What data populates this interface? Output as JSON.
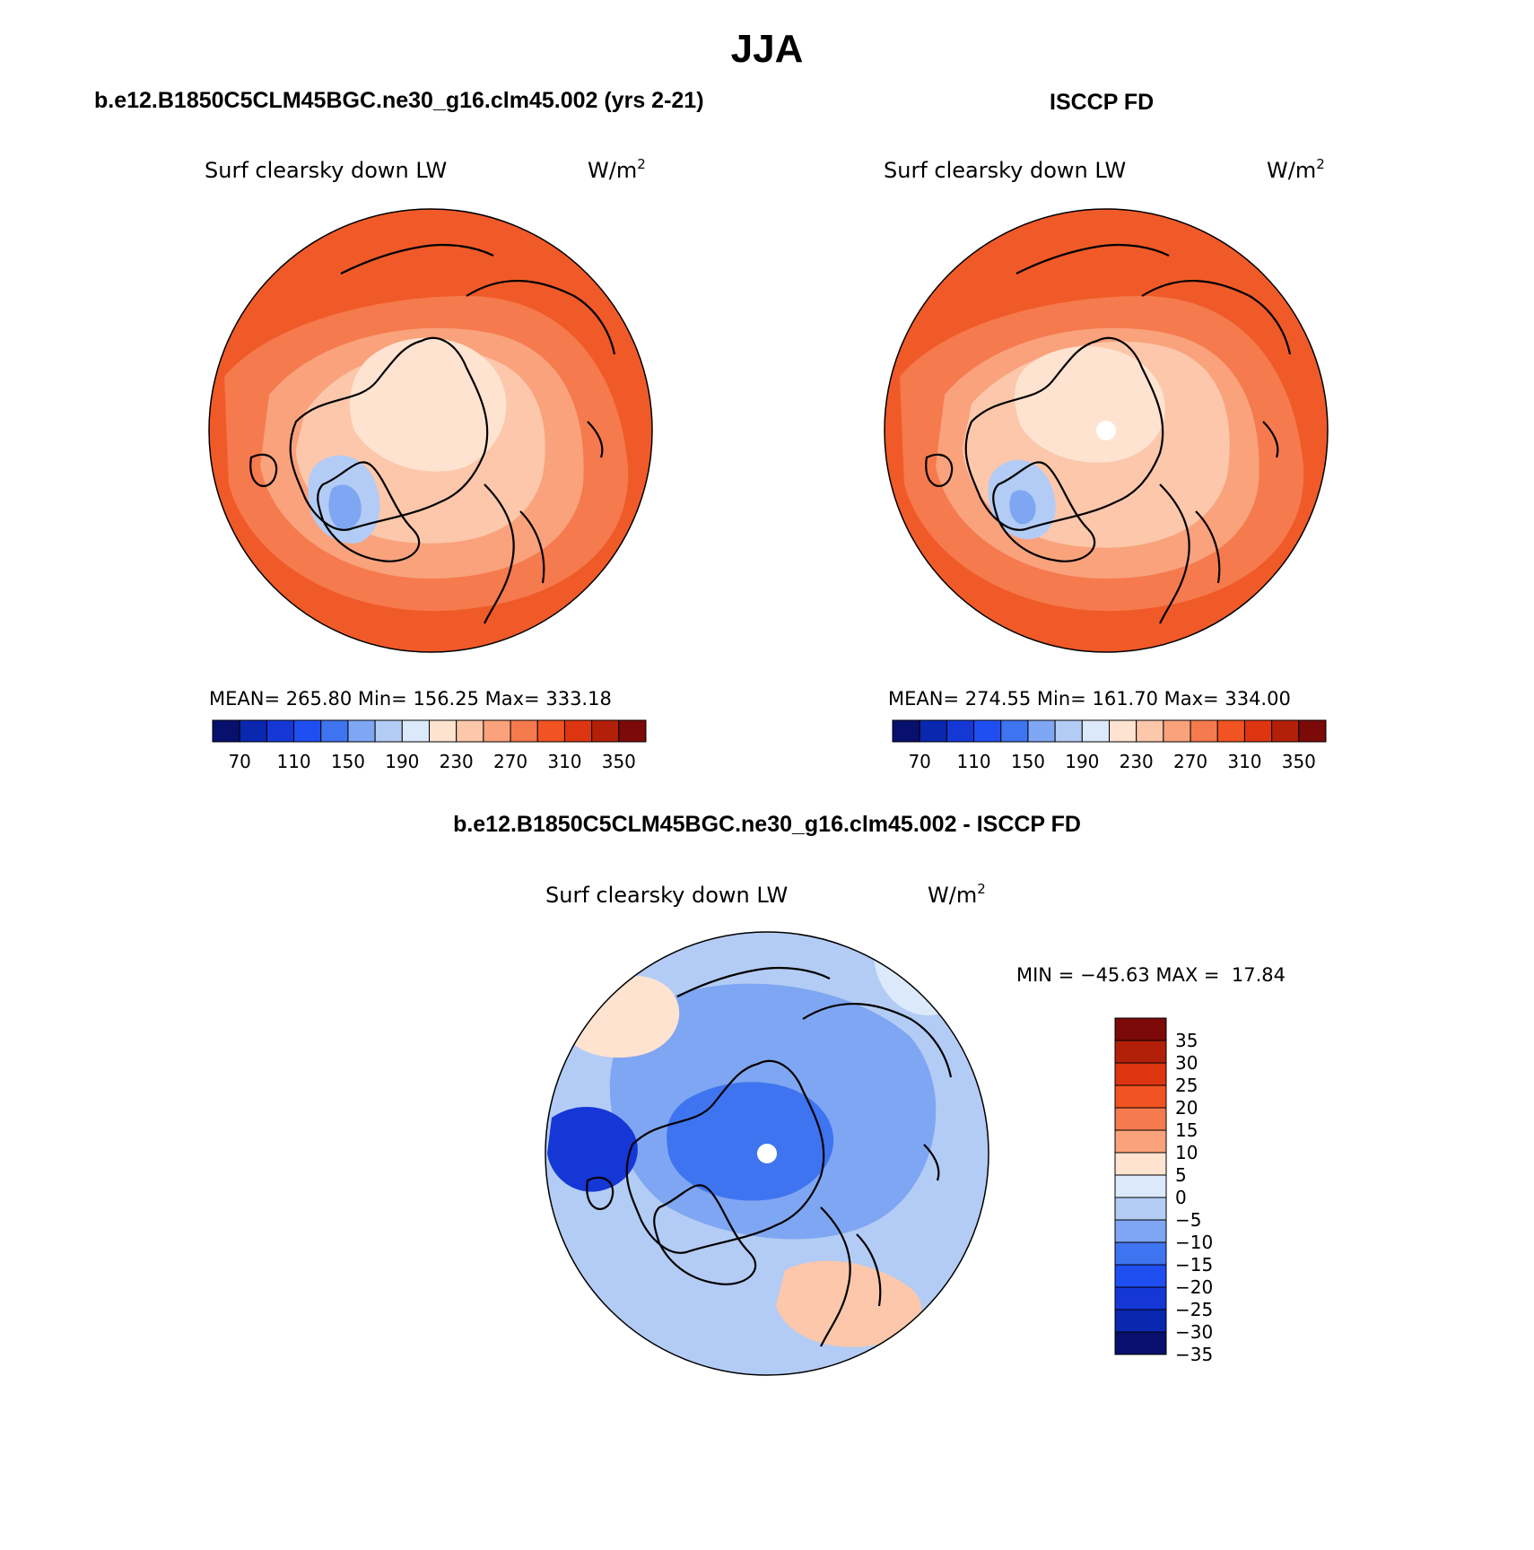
{
  "figure": {
    "season": "JJA"
  },
  "panels": [
    {
      "id": "model",
      "title": "b.e12.B1850C5CLM45BGC.ne30_g16.clm45.002 (yrs 2-21)",
      "variable": "Surf clearsky down LW",
      "units": "W/m",
      "units_sup": "2",
      "stats": {
        "mean_label": "MEAN=",
        "mean": "265.80",
        "min_label": "Min=",
        "min": "156.25",
        "max_label": "Max=",
        "max": "333.18"
      }
    },
    {
      "id": "obs",
      "title": "ISCCP FD",
      "variable": "Surf clearsky down LW",
      "units": "W/m",
      "units_sup": "2",
      "stats": {
        "mean_label": "MEAN=",
        "mean": "274.55",
        "min_label": "Min=",
        "min": "161.70",
        "max_label": "Max=",
        "max": "334.00"
      }
    },
    {
      "id": "diff",
      "title": "b.e12.B1850C5CLM45BGC.ne30_g16.clm45.002 - ISCCP FD",
      "variable": "Surf clearsky down LW",
      "units": "W/m",
      "units_sup": "2",
      "stats_text": "MIN = −45.63 MAX =  17.84"
    }
  ],
  "colorbars": {
    "abs": {
      "colors": [
        "#08106e",
        "#0a27b0",
        "#1437d6",
        "#1f4ff0",
        "#3f74f0",
        "#7fa6f2",
        "#b3ccf5",
        "#dbe9fa",
        "#fde3d0",
        "#fcc7aa",
        "#f9a27c",
        "#f57a4d",
        "#f15422",
        "#dd3510",
        "#b2200a",
        "#7c0a08"
      ],
      "tick_labels": [
        "70",
        "110",
        "150",
        "190",
        "230",
        "270",
        "310",
        "350"
      ]
    },
    "diff": {
      "colors": [
        "#7c0a08",
        "#b2200a",
        "#dd3510",
        "#f15422",
        "#f57a4d",
        "#f9a27c",
        "#fde3d0",
        "#dbe9fa",
        "#b3ccf5",
        "#7fa6f2",
        "#3f74f0",
        "#1f4ff0",
        "#1437d6",
        "#0a27b0",
        "#08106e"
      ],
      "tick_labels": [
        "35",
        "30",
        "25",
        "20",
        "15",
        "10",
        "5",
        "0",
        "−5",
        "−10",
        "−15",
        "−20",
        "−25",
        "−30",
        "−35"
      ]
    }
  },
  "maps": [
    {
      "panel": "model",
      "background": "#f05a28",
      "regions": [
        {
          "color": "#f57a4d",
          "level": "280-300"
        },
        {
          "color": "#f9a27c",
          "level": "260-280"
        },
        {
          "color": "#fcc7aa",
          "level": "240-260"
        },
        {
          "color": "#fde3d0",
          "level": "230-240"
        },
        {
          "color": "#b3ccf5",
          "level": "190-210"
        },
        {
          "color": "#7fa6f2",
          "level": "170-190"
        }
      ],
      "pole_hole": false
    },
    {
      "panel": "obs",
      "background": "#f05a28",
      "regions": [
        {
          "color": "#f57a4d",
          "level": "280-300"
        },
        {
          "color": "#f9a27c",
          "level": "260-280"
        },
        {
          "color": "#fcc7aa",
          "level": "240-260"
        },
        {
          "color": "#fde3d0",
          "level": "230-240"
        },
        {
          "color": "#b3ccf5",
          "level": "190-210"
        },
        {
          "color": "#7fa6f2",
          "level": "170-190"
        }
      ],
      "pole_hole": true
    },
    {
      "panel": "diff",
      "background": "#b3ccf5",
      "regions": [
        {
          "color": "#7fa6f2",
          "level": "-15 to -10"
        },
        {
          "color": "#3f74f0",
          "level": "-20 to -15"
        },
        {
          "color": "#1437d6",
          "level": "-30 to -25"
        },
        {
          "color": "#fde3d0",
          "level": "0 to 5"
        },
        {
          "color": "#fcc7aa",
          "level": "5 to 10"
        },
        {
          "color": "#dbe9fa",
          "level": "-5 to 0"
        }
      ],
      "pole_hole": true
    }
  ]
}
